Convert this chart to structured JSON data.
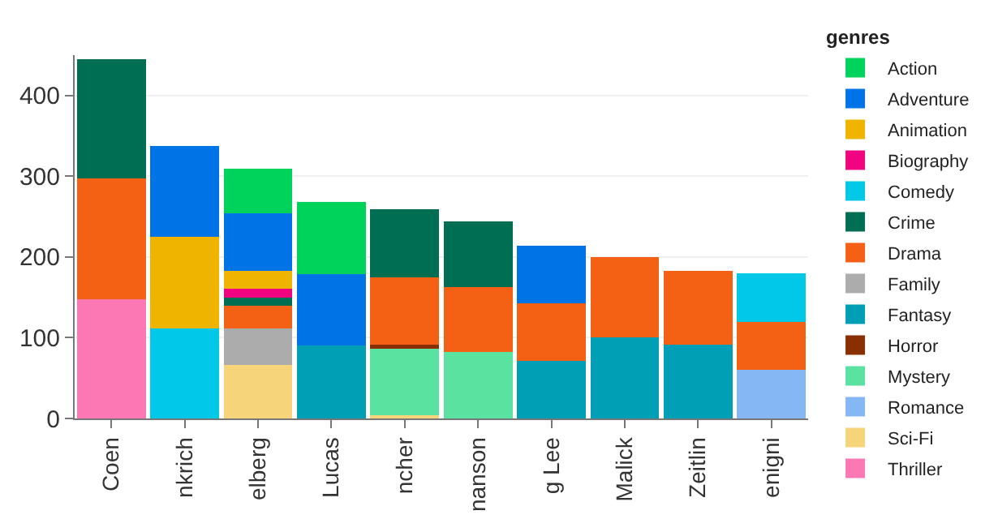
{
  "chart_data": {
    "type": "bar",
    "stacked": true,
    "legend_title": "genres",
    "legend": "right",
    "grid": "y",
    "categories": [
      "Coen",
      "nkrich",
      "elberg",
      "Lucas",
      "ncher",
      "nanson",
      "g Lee",
      "Malick",
      "Zeitlin",
      "enigni"
    ],
    "ylim": [
      0,
      450
    ],
    "yticks": [
      0,
      100,
      200,
      300,
      400
    ],
    "series": [
      {
        "name": "Thriller",
        "color": "#fc78b5",
        "values": [
          148,
          null,
          null,
          null,
          null,
          null,
          null,
          null,
          null,
          null
        ]
      },
      {
        "name": "Sci-Fi",
        "color": "#f5d47a",
        "values": [
          null,
          null,
          66,
          null,
          4,
          null,
          null,
          null,
          null,
          null
        ]
      },
      {
        "name": "Romance",
        "color": "#86b7f5",
        "values": [
          null,
          null,
          null,
          null,
          null,
          null,
          null,
          null,
          null,
          60
        ]
      },
      {
        "name": "Mystery",
        "color": "#5ae3a0",
        "values": [
          null,
          null,
          null,
          null,
          84,
          82,
          null,
          null,
          null,
          null
        ]
      },
      {
        "name": "Horror",
        "color": "#8a2f00",
        "values": [
          null,
          null,
          null,
          null,
          3,
          null,
          null,
          null,
          null,
          null
        ]
      },
      {
        "name": "Fantasy",
        "color": "#009fb5",
        "values": [
          null,
          null,
          null,
          90,
          null,
          null,
          71,
          100,
          91,
          null
        ]
      },
      {
        "name": "Family",
        "color": "#acacac",
        "values": [
          null,
          null,
          46,
          null,
          null,
          null,
          null,
          null,
          null,
          null
        ]
      },
      {
        "name": "Drama",
        "color": "#f56114",
        "values": [
          149,
          null,
          28,
          null,
          84,
          81,
          72,
          100,
          92,
          60
        ]
      },
      {
        "name": "Crime",
        "color": "#006e52",
        "values": [
          148,
          null,
          10,
          null,
          84,
          81,
          null,
          null,
          null,
          null
        ]
      },
      {
        "name": "Comedy",
        "color": "#00c8e6",
        "values": [
          null,
          112,
          null,
          null,
          null,
          null,
          null,
          null,
          null,
          60
        ]
      },
      {
        "name": "Biography",
        "color": "#f0047f",
        "values": [
          null,
          null,
          11,
          null,
          null,
          null,
          null,
          null,
          null,
          null
        ]
      },
      {
        "name": "Animation",
        "color": "#efb400",
        "values": [
          null,
          113,
          22,
          null,
          null,
          null,
          null,
          null,
          null,
          null
        ]
      },
      {
        "name": "Adventure",
        "color": "#0073e6",
        "values": [
          null,
          113,
          71,
          89,
          null,
          null,
          71,
          null,
          null,
          null
        ]
      },
      {
        "name": "Action",
        "color": "#00d35b",
        "values": [
          null,
          null,
          55,
          89,
          null,
          null,
          null,
          null,
          null,
          null
        ]
      }
    ]
  }
}
